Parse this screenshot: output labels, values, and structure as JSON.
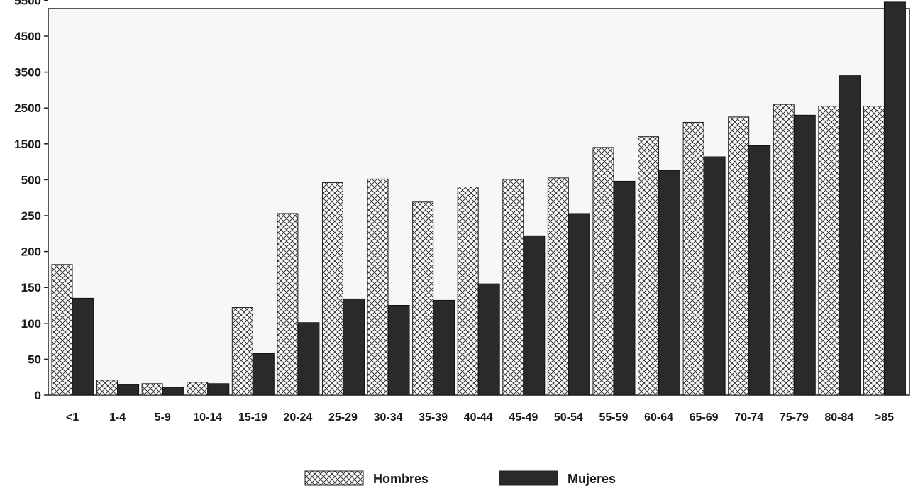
{
  "chart_data": {
    "type": "bar",
    "title": "",
    "xlabel": "",
    "ylabel": "",
    "y_ticks": [
      "0",
      "50",
      "100",
      "150",
      "200",
      "250",
      "500",
      "1500",
      "2500",
      "3500",
      "4500",
      "5500"
    ],
    "y_scale_note": "piecewise axis: ticks evenly spaced; 0-250 linear in steps of 50, then 500, 1500, 2500, 3500, 4500, 5500",
    "categories": [
      "<1",
      "1-4",
      "5-9",
      "10-14",
      "15-19",
      "20-24",
      "25-29",
      "30-34",
      "35-39",
      "40-44",
      "45-49",
      "50-54",
      "55-59",
      "60-64",
      "65-69",
      "70-74",
      "75-79",
      "80-84",
      ">85"
    ],
    "series": [
      {
        "name": "Hombres",
        "pattern": "crosshatch",
        "color": "#ffffff",
        "values": [
          182,
          21,
          16,
          18,
          122,
          265,
          480,
          520,
          345,
          450,
          510,
          550,
          1400,
          1700,
          2100,
          2250,
          2600,
          2550,
          2550
        ]
      },
      {
        "name": "Mujeres",
        "pattern": "solid",
        "color": "#2a2a2a",
        "values": [
          135,
          15,
          11,
          16,
          58,
          101,
          134,
          125,
          132,
          155,
          222,
          265,
          490,
          760,
          1140,
          1450,
          2300,
          3400,
          5450
        ]
      }
    ],
    "legend": {
      "placement": "bottom-center",
      "entries": [
        "Hombres",
        "Mujeres"
      ]
    },
    "grid": false
  }
}
